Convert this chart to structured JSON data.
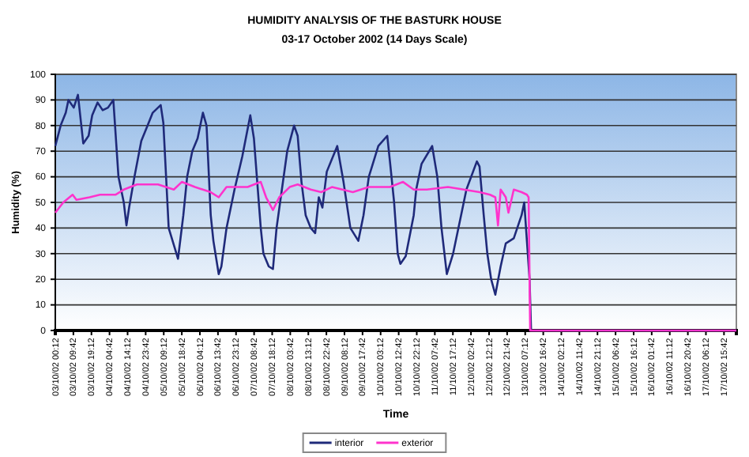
{
  "chart_data": {
    "type": "line",
    "title": "HUMIDITY ANALYSIS OF THE BASTURK HOUSE",
    "subtitle": "03-17 October 2002  (14 Days Scale)",
    "xlabel": "Time",
    "ylabel": "Humidity (%)",
    "xlim": [
      "2002-10-03T00:12",
      "2002-10-17T22:12"
    ],
    "ylim": [
      0,
      100
    ],
    "yticks": [
      0,
      10,
      20,
      30,
      40,
      50,
      60,
      70,
      80,
      90,
      100
    ],
    "xticks": [
      {
        "value": "2002-10-03T00:12",
        "label": "03/10/02 00:12"
      },
      {
        "value": "2002-10-03T09:42",
        "label": "03/10/02 09:42"
      },
      {
        "value": "2002-10-03T19:12",
        "label": "03/10/02 19:12"
      },
      {
        "value": "2002-10-04T04:42",
        "label": "04/10/02 04:42"
      },
      {
        "value": "2002-10-04T14:12",
        "label": "04/10/02 14:12"
      },
      {
        "value": "2002-10-04T23:42",
        "label": "04/10/02 23:42"
      },
      {
        "value": "2002-10-05T09:12",
        "label": "05/10/02 09:12"
      },
      {
        "value": "2002-10-05T18:42",
        "label": "05/10/02 18:42"
      },
      {
        "value": "2002-10-06T04:12",
        "label": "06/10/02 04:12"
      },
      {
        "value": "2002-10-06T13:42",
        "label": "06/10/02 13:42"
      },
      {
        "value": "2002-10-06T23:12",
        "label": "06/10/02 23:12"
      },
      {
        "value": "2002-10-07T08:42",
        "label": "07/10/02 08:42"
      },
      {
        "value": "2002-10-07T18:12",
        "label": "07/10/02 18:12"
      },
      {
        "value": "2002-10-08T03:42",
        "label": "08/10/02 03:42"
      },
      {
        "value": "2002-10-08T13:12",
        "label": "08/10/02 13:12"
      },
      {
        "value": "2002-10-08T22:42",
        "label": "08/10/02 22:42"
      },
      {
        "value": "2002-10-09T08:12",
        "label": "09/10/02 08:12"
      },
      {
        "value": "2002-10-09T17:42",
        "label": "09/10/02 17:42"
      },
      {
        "value": "2002-10-10T03:12",
        "label": "10/10/02 03:12"
      },
      {
        "value": "2002-10-10T12:42",
        "label": "10/10/02 12:42"
      },
      {
        "value": "2002-10-10T22:12",
        "label": "10/10/02 22:12"
      },
      {
        "value": "2002-10-11T07:42",
        "label": "11/10/02 07:42"
      },
      {
        "value": "2002-10-11T17:12",
        "label": "11/10/02 17:12"
      },
      {
        "value": "2002-10-12T02:42",
        "label": "12/10/02 02:42"
      },
      {
        "value": "2002-10-12T12:12",
        "label": "12/10/02 12:12"
      },
      {
        "value": "2002-10-12T21:42",
        "label": "12/10/02 21:42"
      },
      {
        "value": "2002-10-13T07:12",
        "label": "13/10/02 07:12"
      },
      {
        "value": "2002-10-13T16:42",
        "label": "13/10/02 16:42"
      },
      {
        "value": "2002-10-14T02:12",
        "label": "14/10/02 02:12"
      },
      {
        "value": "2002-10-14T11:42",
        "label": "14/10/02 11:42"
      },
      {
        "value": "2002-10-14T21:12",
        "label": "14/10/02 21:12"
      },
      {
        "value": "2002-10-15T06:42",
        "label": "15/10/02 06:42"
      },
      {
        "value": "2002-10-15T16:12",
        "label": "15/10/02 16:12"
      },
      {
        "value": "2002-10-16T01:42",
        "label": "16/10/02 01:42"
      },
      {
        "value": "2002-10-16T11:12",
        "label": "16/10/02 11:12"
      },
      {
        "value": "2002-10-16T20:42",
        "label": "16/10/02 20:42"
      },
      {
        "value": "2002-10-17T06:12",
        "label": "17/10/02 06:12"
      },
      {
        "value": "2002-10-17T15:42",
        "label": "17/10/02 15:42"
      }
    ],
    "grid": "y",
    "legend": "bottom",
    "marker": "none",
    "line_style": "solid",
    "series": [
      {
        "name": "interior",
        "color": "#1f2a7a",
        "x": [
          "2002-10-03T00:12",
          "2002-10-03T03:00",
          "2002-10-03T05:42",
          "2002-10-03T07:06",
          "2002-10-03T09:54",
          "2002-10-03T12:06",
          "2002-10-03T14:54",
          "2002-10-03T17:42",
          "2002-10-03T19:36",
          "2002-10-03T22:24",
          "2002-10-04T01:06",
          "2002-10-04T03:54",
          "2002-10-04T06:42",
          "2002-10-04T09:24",
          "2002-10-04T12:12",
          "2002-10-04T13:36",
          "2002-10-04T15:00",
          "2002-10-04T17:48",
          "2002-10-04T21:24",
          "2002-10-05T00:42",
          "2002-10-05T03:24",
          "2002-10-05T07:36",
          "2002-10-05T09:00",
          "2002-10-05T11:48",
          "2002-10-05T15:54",
          "2002-10-05T16:42",
          "2002-10-05T19:30",
          "2002-10-05T21:30",
          "2002-10-06T00:12",
          "2002-10-06T03:00",
          "2002-10-06T05:48",
          "2002-10-06T07:42",
          "2002-10-06T09:54",
          "2002-10-06T11:18",
          "2002-10-06T14:06",
          "2002-10-06T15:30",
          "2002-10-06T18:12",
          "2002-10-06T22:24",
          "2002-10-07T02:30",
          "2002-10-07T06:42",
          "2002-10-07T08:36",
          "2002-10-07T12:12",
          "2002-10-07T13:36",
          "2002-10-07T16:24",
          "2002-10-07T18:36",
          "2002-10-07T20:30",
          "2002-10-07T23:18",
          "2002-10-08T02:06",
          "2002-10-08T05:42",
          "2002-10-08T07:36",
          "2002-10-08T09:36",
          "2002-10-08T11:48",
          "2002-10-08T14:30",
          "2002-10-08T16:48",
          "2002-10-08T18:42",
          "2002-10-08T20:36",
          "2002-10-08T22:54",
          "2002-10-09T04:24",
          "2002-10-09T07:42",
          "2002-10-09T11:18",
          "2002-10-09T15:30",
          "2002-10-09T18:12",
          "2002-10-09T21:00",
          "2002-10-10T02:00",
          "2002-10-10T06:42",
          "2002-10-10T08:06",
          "2002-10-10T10:18",
          "2002-10-10T12:12",
          "2002-10-10T13:36",
          "2002-10-10T16:24",
          "2002-10-10T20:36",
          "2002-10-10T21:54",
          "2002-10-11T00:42",
          "2002-10-11T06:18",
          "2002-10-11T09:00",
          "2002-10-11T11:12",
          "2002-10-11T14:00",
          "2002-10-11T17:18",
          "2002-10-11T21:30",
          "2002-10-12T00:18",
          "2002-10-12T05:48",
          "2002-10-12T07:12",
          "2002-10-12T09:24",
          "2002-10-12T11:18",
          "2002-10-12T13:18",
          "2002-10-12T15:30",
          "2002-10-12T18:18",
          "2002-10-12T21:00",
          "2002-10-13T01:12",
          "2002-10-13T05:18",
          "2002-10-13T06:42",
          "2002-10-13T08:06",
          "2002-10-13T09:30",
          "2002-10-13T10:18",
          "2002-10-17T22:12"
        ],
        "values": [
          72,
          80,
          85,
          90,
          87,
          92,
          73,
          76,
          84,
          89,
          86,
          87,
          90,
          60,
          50,
          41,
          48,
          60,
          74,
          80,
          85,
          88,
          81,
          40,
          30,
          28,
          45,
          60,
          70,
          75,
          85,
          80,
          45,
          35,
          22,
          25,
          40,
          55,
          68,
          84,
          75,
          40,
          30,
          25,
          24,
          40,
          55,
          70,
          80,
          76,
          58,
          45,
          40,
          38,
          52,
          48,
          62,
          72,
          58,
          40,
          35,
          45,
          60,
          72,
          76,
          66,
          50,
          30,
          26,
          29,
          45,
          55,
          65,
          72,
          60,
          40,
          22,
          30,
          45,
          55,
          66,
          64,
          45,
          30,
          20,
          14,
          25,
          34,
          36,
          45,
          50,
          35,
          20,
          0,
          0
        ]
      },
      {
        "name": "exterior",
        "color": "#ff33cc",
        "x": [
          "2002-10-03T00:12",
          "2002-10-03T04:24",
          "2002-10-03T09:18",
          "2002-10-03T11:18",
          "2002-10-03T18:12",
          "2002-10-03T23:42",
          "2002-10-04T07:48",
          "2002-10-04T12:12",
          "2002-10-04T19:06",
          "2002-10-05T06:12",
          "2002-10-05T14:30",
          "2002-10-05T18:42",
          "2002-10-06T01:36",
          "2002-10-06T09:54",
          "2002-10-06T14:06",
          "2002-10-06T18:12",
          "2002-10-07T05:18",
          "2002-10-07T12:12",
          "2002-10-07T15:00",
          "2002-10-07T18:36",
          "2002-10-07T21:54",
          "2002-10-08T03:24",
          "2002-10-08T07:36",
          "2002-10-08T14:30",
          "2002-10-08T20:00",
          "2002-10-09T01:36",
          "2002-10-09T07:06",
          "2002-10-09T12:36",
          "2002-10-09T21:00",
          "2002-10-10T08:06",
          "2002-10-10T15:00",
          "2002-10-10T20:36",
          "2002-10-11T03:30",
          "2002-10-11T14:36",
          "2002-10-11T22:54",
          "2002-10-12T07:12",
          "2002-10-12T12:42",
          "2002-10-12T15:30",
          "2002-10-12T16:54",
          "2002-10-12T18:18",
          "2002-10-12T21:00",
          "2002-10-12T22:24",
          "2002-10-13T01:12",
          "2002-10-13T05:18",
          "2002-10-13T08:06",
          "2002-10-13T09:00",
          "2002-10-13T09:48",
          "2002-10-17T22:12"
        ],
        "values": [
          46,
          50,
          53,
          51,
          52,
          53,
          53,
          55,
          57,
          57,
          55,
          58,
          56,
          54,
          52,
          56,
          56,
          58,
          52,
          47,
          52,
          56,
          57,
          55,
          54,
          56,
          55,
          54,
          56,
          56,
          58,
          55,
          55,
          56,
          55,
          54,
          53,
          52,
          41,
          55,
          52,
          46,
          55,
          54,
          53,
          52,
          0,
          0
        ]
      }
    ]
  }
}
